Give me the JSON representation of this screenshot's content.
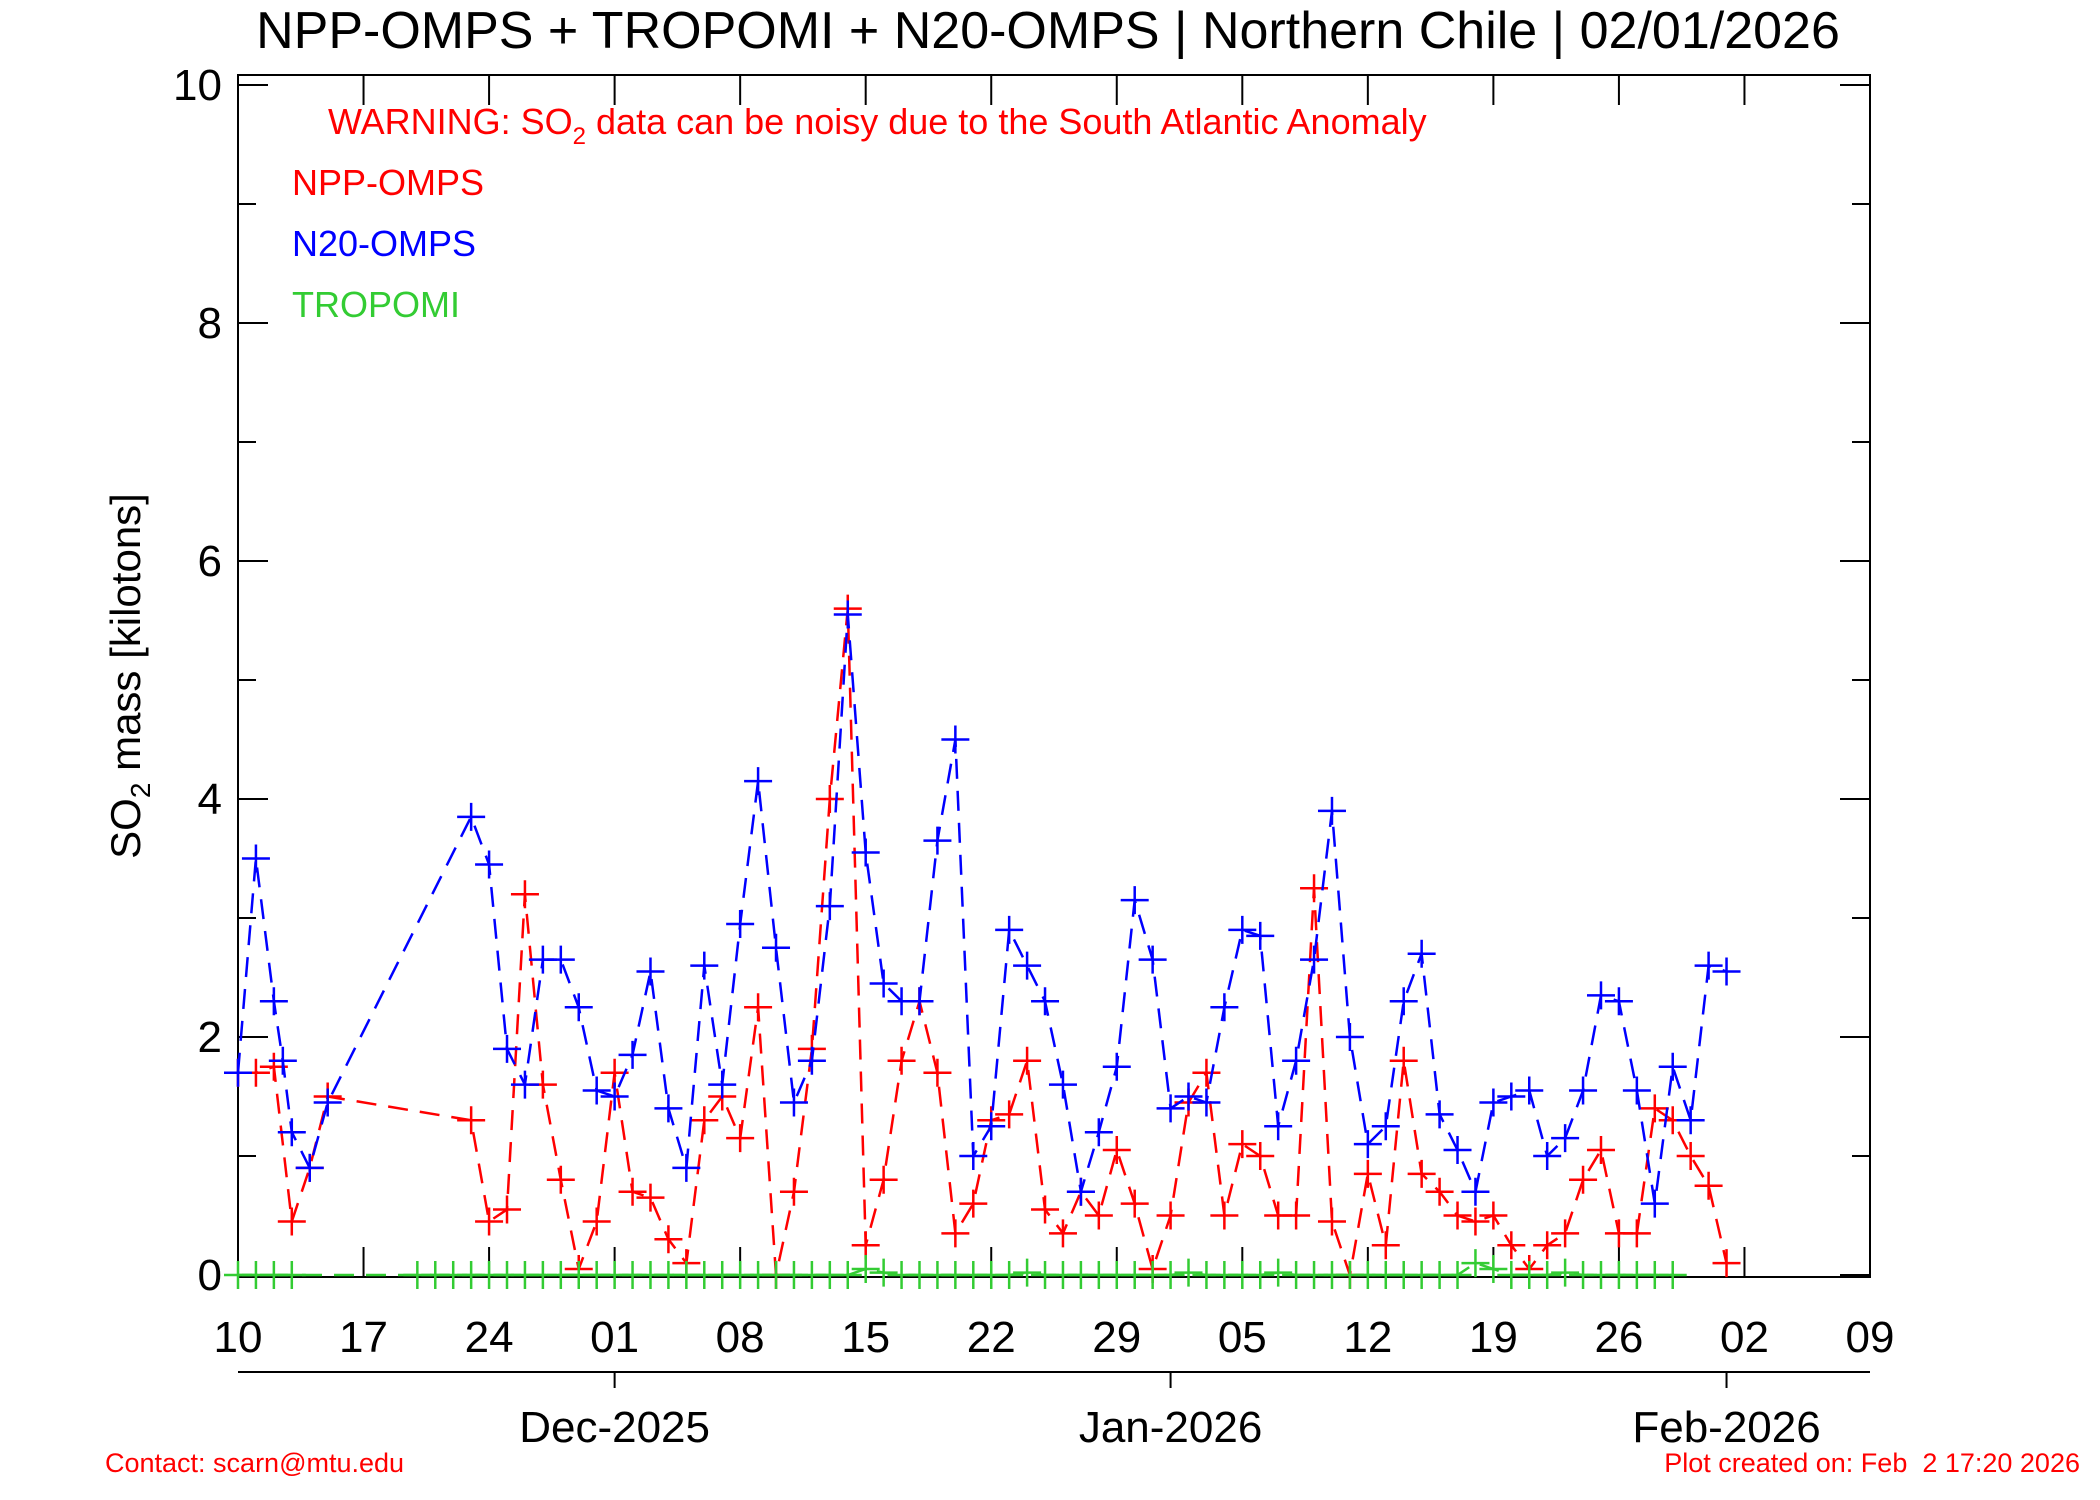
{
  "chart_data": {
    "type": "line",
    "title": "NPP-OMPS + TROPOMI + N20-OMPS | Northern Chile | 02/01/2026",
    "warning": {
      "prefix": "WARNING: SO",
      "subscript": "2",
      "suffix": " data can be noisy due to the South Atlantic Anomaly",
      "color": "#ff0000"
    },
    "ylabel": {
      "prefix": "SO",
      "subscript": "2",
      "suffix": " mass [kilotons]"
    },
    "ylim": [
      0,
      10
    ],
    "yticks": [
      0,
      2,
      4,
      6,
      8,
      10
    ],
    "x_start_day": 0,
    "x_end_day": 91,
    "xticks": [
      {
        "label": "10",
        "day": 0
      },
      {
        "label": "17",
        "day": 7
      },
      {
        "label": "24",
        "day": 14
      },
      {
        "label": "01",
        "day": 21
      },
      {
        "label": "08",
        "day": 28
      },
      {
        "label": "15",
        "day": 35
      },
      {
        "label": "22",
        "day": 42
      },
      {
        "label": "29",
        "day": 49
      },
      {
        "label": "05",
        "day": 56
      },
      {
        "label": "12",
        "day": 63
      },
      {
        "label": "19",
        "day": 70
      },
      {
        "label": "26",
        "day": 77
      },
      {
        "label": "02",
        "day": 84
      },
      {
        "label": "09",
        "day": 91
      }
    ],
    "months": [
      {
        "label": "Dec-2025",
        "day": 21
      },
      {
        "label": "Jan-2026",
        "day": 52
      },
      {
        "label": "Feb-2026",
        "day": 83
      }
    ],
    "series": [
      {
        "name": "NPP-OMPS",
        "color": "#ff0000",
        "x": [
          0,
          1,
          2,
          3,
          4,
          5,
          13,
          14,
          15,
          16,
          17,
          18,
          19,
          20,
          21,
          22,
          23,
          24,
          25,
          26,
          27,
          28,
          29,
          30,
          31,
          32,
          33,
          34,
          35,
          36,
          37,
          38,
          39,
          40,
          41,
          42,
          43,
          44,
          45,
          46,
          47,
          48,
          49,
          50,
          51,
          52,
          53,
          54,
          55,
          56,
          57,
          58,
          59,
          60,
          61,
          62,
          63,
          64,
          65,
          66,
          67,
          68,
          69,
          70,
          71,
          72,
          73,
          74,
          75,
          76,
          77,
          78,
          79,
          80,
          81,
          82,
          83
        ],
        "y": [
          1.7,
          1.7,
          1.75,
          0.45,
          0.9,
          1.5,
          1.3,
          0.45,
          0.55,
          3.2,
          1.6,
          0.8,
          0.05,
          0.45,
          1.7,
          0.7,
          0.65,
          0.3,
          0.1,
          1.3,
          1.5,
          1.15,
          2.25,
          0.0,
          0.7,
          1.9,
          4.0,
          5.6,
          0.25,
          0.8,
          1.8,
          2.3,
          1.7,
          0.35,
          0.6,
          1.3,
          1.35,
          1.8,
          0.55,
          0.35,
          0.7,
          0.5,
          1.05,
          0.6,
          0.05,
          0.5,
          1.45,
          1.7,
          0.5,
          1.1,
          1.0,
          0.5,
          0.5,
          3.25,
          0.45,
          0.0,
          0.85,
          0.25,
          1.8,
          0.85,
          0.7,
          0.5,
          0.45,
          0.5,
          0.25,
          0.05,
          0.25,
          0.35,
          0.8,
          1.05,
          0.35,
          0.35,
          1.4,
          1.3,
          1.0,
          0.75,
          0.1
        ]
      },
      {
        "name": "N20-OMPS",
        "color": "#0000ff",
        "x": [
          0,
          1,
          2,
          2.5,
          3,
          4,
          5,
          13,
          14,
          15,
          16,
          17,
          18,
          19,
          20,
          21,
          22,
          23,
          24,
          25,
          26,
          27,
          28,
          29,
          30,
          31,
          32,
          33,
          34,
          35,
          36,
          37,
          38,
          39,
          40,
          41,
          42,
          43,
          44,
          45,
          46,
          47,
          48,
          49,
          50,
          51,
          52,
          53,
          54,
          55,
          56,
          57,
          58,
          59,
          60,
          61,
          62,
          63,
          64,
          65,
          66,
          67,
          68,
          69,
          70,
          71,
          72,
          73,
          74,
          75,
          76,
          77,
          78,
          79,
          80,
          81,
          82,
          83
        ],
        "y": [
          1.7,
          3.5,
          2.3,
          1.8,
          1.2,
          0.9,
          1.45,
          3.85,
          3.45,
          1.9,
          1.6,
          2.65,
          2.65,
          2.25,
          1.55,
          1.5,
          1.85,
          2.55,
          1.4,
          0.9,
          2.6,
          1.6,
          2.95,
          4.15,
          2.75,
          1.45,
          1.8,
          3.1,
          5.55,
          3.55,
          2.45,
          2.3,
          2.3,
          3.65,
          4.5,
          1.0,
          1.25,
          2.9,
          2.6,
          2.3,
          1.6,
          0.7,
          1.2,
          1.75,
          3.15,
          2.65,
          1.4,
          1.5,
          1.45,
          2.25,
          2.9,
          2.85,
          1.25,
          1.8,
          2.65,
          3.9,
          2.0,
          1.1,
          1.25,
          2.3,
          2.7,
          1.35,
          1.05,
          0.7,
          1.45,
          1.5,
          1.55,
          1.0,
          1.15,
          1.55,
          2.35,
          2.3,
          1.55,
          0.6,
          1.75,
          1.3,
          2.6,
          2.55
        ]
      },
      {
        "name": "TROPOMI",
        "color": "#33cc33",
        "x": [
          0,
          1,
          2,
          3,
          10,
          11,
          12,
          13,
          14,
          15,
          16,
          17,
          18,
          19,
          20,
          21,
          22,
          23,
          24,
          25,
          26,
          27,
          28,
          29,
          30,
          31,
          32,
          33,
          34,
          35,
          36,
          37,
          38,
          39,
          40,
          41,
          42,
          43,
          44,
          45,
          46,
          47,
          48,
          49,
          50,
          51,
          52,
          53,
          54,
          55,
          56,
          57,
          58,
          59,
          60,
          61,
          62,
          63,
          64,
          65,
          66,
          67,
          68,
          69,
          70,
          71,
          72,
          73,
          74,
          75,
          76,
          77,
          78,
          79,
          80
        ],
        "y": [
          0,
          0,
          0,
          0,
          0,
          0,
          0,
          0,
          0,
          0,
          0,
          0,
          0,
          0,
          0,
          0,
          0,
          0,
          0,
          0,
          0,
          0,
          0,
          0,
          0,
          0,
          0,
          0,
          0,
          0.05,
          0.02,
          0,
          0,
          0,
          0,
          0,
          0,
          0,
          0.02,
          0,
          0,
          0,
          0,
          0,
          0,
          0,
          0,
          0.02,
          0,
          0,
          0,
          0,
          0.02,
          0,
          0,
          0,
          0,
          0,
          0,
          0,
          0,
          0,
          0,
          0.1,
          0.05,
          0,
          0,
          0,
          0.02,
          0,
          0,
          0,
          0,
          0,
          0
        ]
      }
    ],
    "legend_position": "top-left",
    "grid": false
  },
  "footer": {
    "contact": "Contact: scarn@mtu.edu",
    "created": "Plot created on: Feb  2 17:20 2026"
  }
}
